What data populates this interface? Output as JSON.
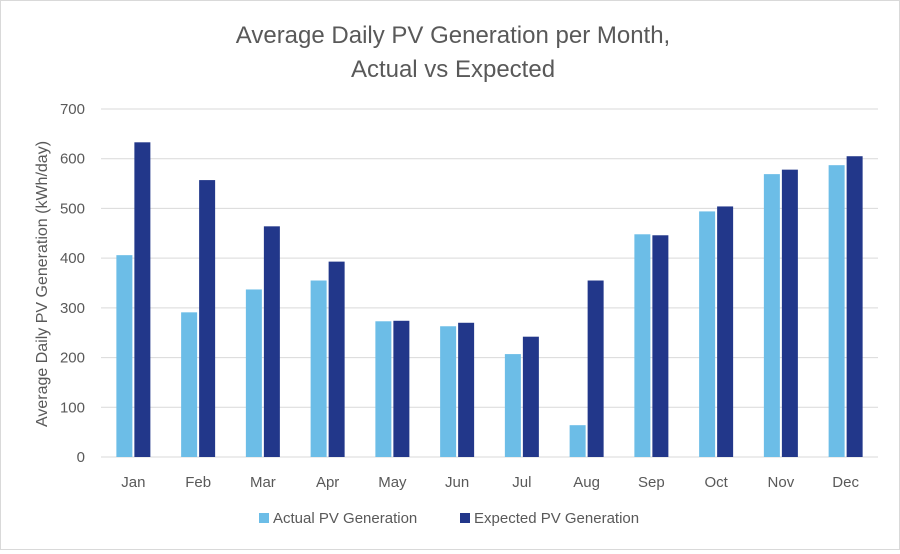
{
  "chart_data": {
    "type": "bar",
    "title_line1": "Average Daily PV Generation per Month,",
    "title_line2": "Actual vs Expected",
    "xlabel": "",
    "ylabel": "Average Daily PV Generation (kWh/day)",
    "ylim": [
      0,
      700
    ],
    "yticks": [
      0,
      100,
      200,
      300,
      400,
      500,
      600,
      700
    ],
    "grid": true,
    "legend_position": "bottom",
    "categories": [
      "Jan",
      "Feb",
      "Mar",
      "Apr",
      "May",
      "Jun",
      "Jul",
      "Aug",
      "Sep",
      "Oct",
      "Nov",
      "Dec"
    ],
    "series": [
      {
        "name": "Actual PV Generation",
        "color": "#6cbde7",
        "values": [
          406,
          291,
          337,
          355,
          273,
          263,
          207,
          64,
          448,
          494,
          569,
          587
        ]
      },
      {
        "name": "Expected PV Generation",
        "color": "#22378a",
        "values": [
          633,
          557,
          464,
          393,
          274,
          270,
          242,
          355,
          446,
          504,
          578,
          605
        ]
      }
    ]
  }
}
